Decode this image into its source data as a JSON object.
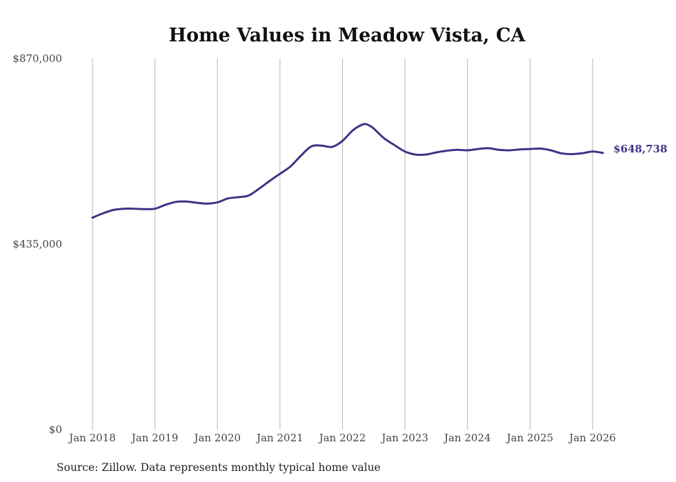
{
  "chart_data": {
    "type": "line",
    "title": "Home Values in Meadow Vista, CA",
    "xlabel": "",
    "ylabel": "",
    "ylim": [
      0,
      870000
    ],
    "yticks": [
      0,
      435000,
      870000
    ],
    "ytick_labels": [
      "$0",
      "$435,000",
      "$870,000"
    ],
    "xlim": [
      2018.0,
      2026.25
    ],
    "xtick_labels": [
      "Jan 2018",
      "Jan 2019",
      "Jan 2020",
      "Jan 2021",
      "Jan 2022",
      "Jan 2023",
      "Jan 2024",
      "Jan 2025",
      "Jan 2026"
    ],
    "grid": "vertical",
    "line_color": "#3b3486",
    "end_label": "$648,738",
    "series": [
      {
        "name": "Typical home value",
        "x": [
          2018.0,
          2018.1667,
          2018.3333,
          2018.5,
          2018.6667,
          2018.8333,
          2019.0,
          2019.1667,
          2019.3333,
          2019.5,
          2019.6667,
          2019.8333,
          2020.0,
          2020.1667,
          2020.3333,
          2020.5,
          2020.6667,
          2020.8333,
          2021.0,
          2021.1667,
          2021.3333,
          2021.5,
          2021.6667,
          2021.8333,
          2022.0,
          2022.1667,
          2022.3333,
          2022.4167,
          2022.5,
          2022.6667,
          2022.8333,
          2023.0,
          2023.1667,
          2023.3333,
          2023.5,
          2023.6667,
          2023.8333,
          2024.0,
          2024.1667,
          2024.3333,
          2024.5,
          2024.6667,
          2024.8333,
          2025.0,
          2025.1667,
          2025.3333,
          2025.5,
          2025.6667,
          2025.8333,
          2026.0,
          2026.1667
        ],
        "values": [
          497000,
          507000,
          515000,
          518000,
          518000,
          517000,
          518000,
          527000,
          534000,
          535000,
          532000,
          530000,
          533000,
          542000,
          545000,
          549000,
          565000,
          583000,
          600000,
          617000,
          642000,
          664000,
          666000,
          663000,
          677000,
          702000,
          716000,
          714000,
          706000,
          683000,
          667000,
          652000,
          645000,
          645000,
          650000,
          654000,
          656000,
          655000,
          658000,
          660000,
          656000,
          655000,
          657000,
          658000,
          659000,
          655000,
          648000,
          646000,
          648000,
          652000,
          648738
        ]
      }
    ]
  },
  "footer": {
    "source": "Source: Zillow. Data represents monthly typical home value"
  }
}
